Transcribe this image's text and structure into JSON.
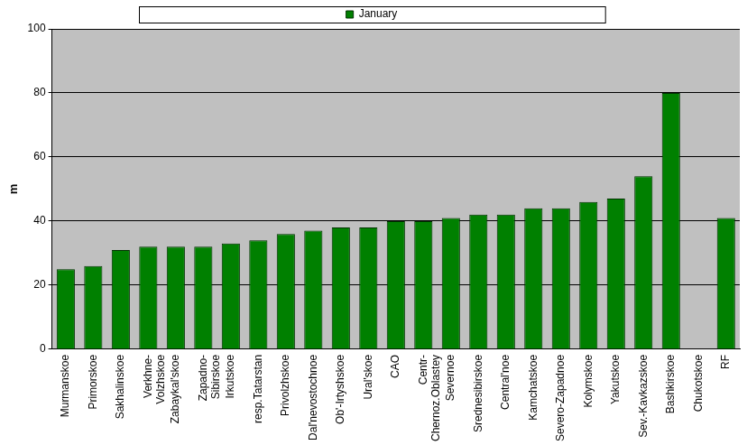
{
  "chart_data": {
    "type": "bar",
    "y_label": "m",
    "categories": [
      "Murmanskoe",
      "Primorskoe",
      "Sakhalinskoe",
      "Verkhne-Volzhskoe",
      "Zabaykal'skoe",
      "Zapadno-Sibirskoe",
      "Irkutskoe",
      "resp.Tatarstan",
      "Privolzhskoe",
      "Dal'nevostochnoe",
      "Ob'-Irtyshskoe",
      "Ural'skoe",
      "CAO",
      "Centr-Chernoz.Oblastey",
      "Severnoe",
      "Srednesibirskoe",
      "Central'noe",
      "Kamchatskoe",
      "Severo-Zapadnoe",
      "Kolymskoe",
      "Yakutskoe",
      "Sev.-Kavkazskoe",
      "Bashkirskoe",
      "Chukotskoe",
      "RF"
    ],
    "series": [
      {
        "name": "January",
        "color": "#008000",
        "values": [
          25,
          26,
          31,
          32,
          32,
          32,
          33,
          34,
          36,
          37,
          38,
          38,
          40,
          40,
          41,
          42,
          42,
          44,
          44,
          46,
          47,
          54,
          80,
          null,
          41
        ]
      }
    ],
    "ylim": [
      0,
      100
    ],
    "yticks": [
      0,
      20,
      40,
      60,
      80,
      100
    ],
    "grid": true,
    "legend": "top"
  }
}
